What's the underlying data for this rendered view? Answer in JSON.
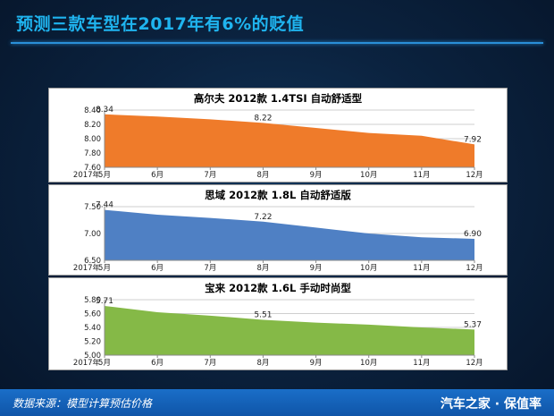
{
  "page": {
    "title": "预测三款车型在2017年有6%的贬值",
    "footer_source": "数据来源：模型计算预估价格",
    "footer_brand": "汽车之家 · 保值率"
  },
  "chart_data": [
    {
      "type": "area",
      "title": "高尔夫 2012款 1.4TSI 自动舒适型",
      "year_label": "2017年",
      "categories": [
        "5月",
        "6月",
        "7月",
        "8月",
        "9月",
        "10月",
        "11月",
        "12月"
      ],
      "values": [
        8.34,
        8.31,
        8.27,
        8.22,
        8.15,
        8.08,
        8.04,
        7.92
      ],
      "data_labels": [
        {
          "index": 0,
          "text": "8.34"
        },
        {
          "index": 3,
          "text": "8.22"
        },
        {
          "index": 7,
          "text": "7.92"
        }
      ],
      "ylim": [
        7.6,
        8.4
      ],
      "yticks": [
        7.6,
        7.8,
        8.0,
        8.2,
        8.4
      ],
      "ytick_labels": [
        "7.60",
        "7.80",
        "8.00",
        "8.20",
        "8.40"
      ],
      "color": "#ef7b2a",
      "grid": true
    },
    {
      "type": "area",
      "title": "思域 2012款 1.8L 自动舒适版",
      "year_label": "2017年",
      "categories": [
        "5月",
        "6月",
        "7月",
        "8月",
        "9月",
        "10月",
        "11月",
        "12月"
      ],
      "values": [
        7.44,
        7.35,
        7.29,
        7.22,
        7.11,
        7.0,
        6.93,
        6.9
      ],
      "data_labels": [
        {
          "index": 0,
          "text": "7.44"
        },
        {
          "index": 3,
          "text": "7.22"
        },
        {
          "index": 7,
          "text": "6.90"
        }
      ],
      "ylim": [
        6.5,
        7.5
      ],
      "yticks": [
        6.5,
        7.0,
        7.5
      ],
      "ytick_labels": [
        "6.50",
        "7.00",
        "7.50"
      ],
      "color": "#4f80c4",
      "grid": true
    },
    {
      "type": "area",
      "title": "宝来 2012款 1.6L 手动时尚型",
      "year_label": "2017年",
      "categories": [
        "5月",
        "6月",
        "7月",
        "8月",
        "9月",
        "10月",
        "11月",
        "12月"
      ],
      "values": [
        5.71,
        5.62,
        5.57,
        5.51,
        5.47,
        5.44,
        5.4,
        5.37
      ],
      "data_labels": [
        {
          "index": 0,
          "text": "5.71"
        },
        {
          "index": 3,
          "text": "5.51"
        },
        {
          "index": 7,
          "text": "5.37"
        }
      ],
      "ylim": [
        5.0,
        5.8
      ],
      "yticks": [
        5.0,
        5.2,
        5.4,
        5.6,
        5.8
      ],
      "ytick_labels": [
        "5.00",
        "5.20",
        "5.40",
        "5.60",
        "5.80"
      ],
      "color": "#85b947",
      "grid": true
    }
  ]
}
